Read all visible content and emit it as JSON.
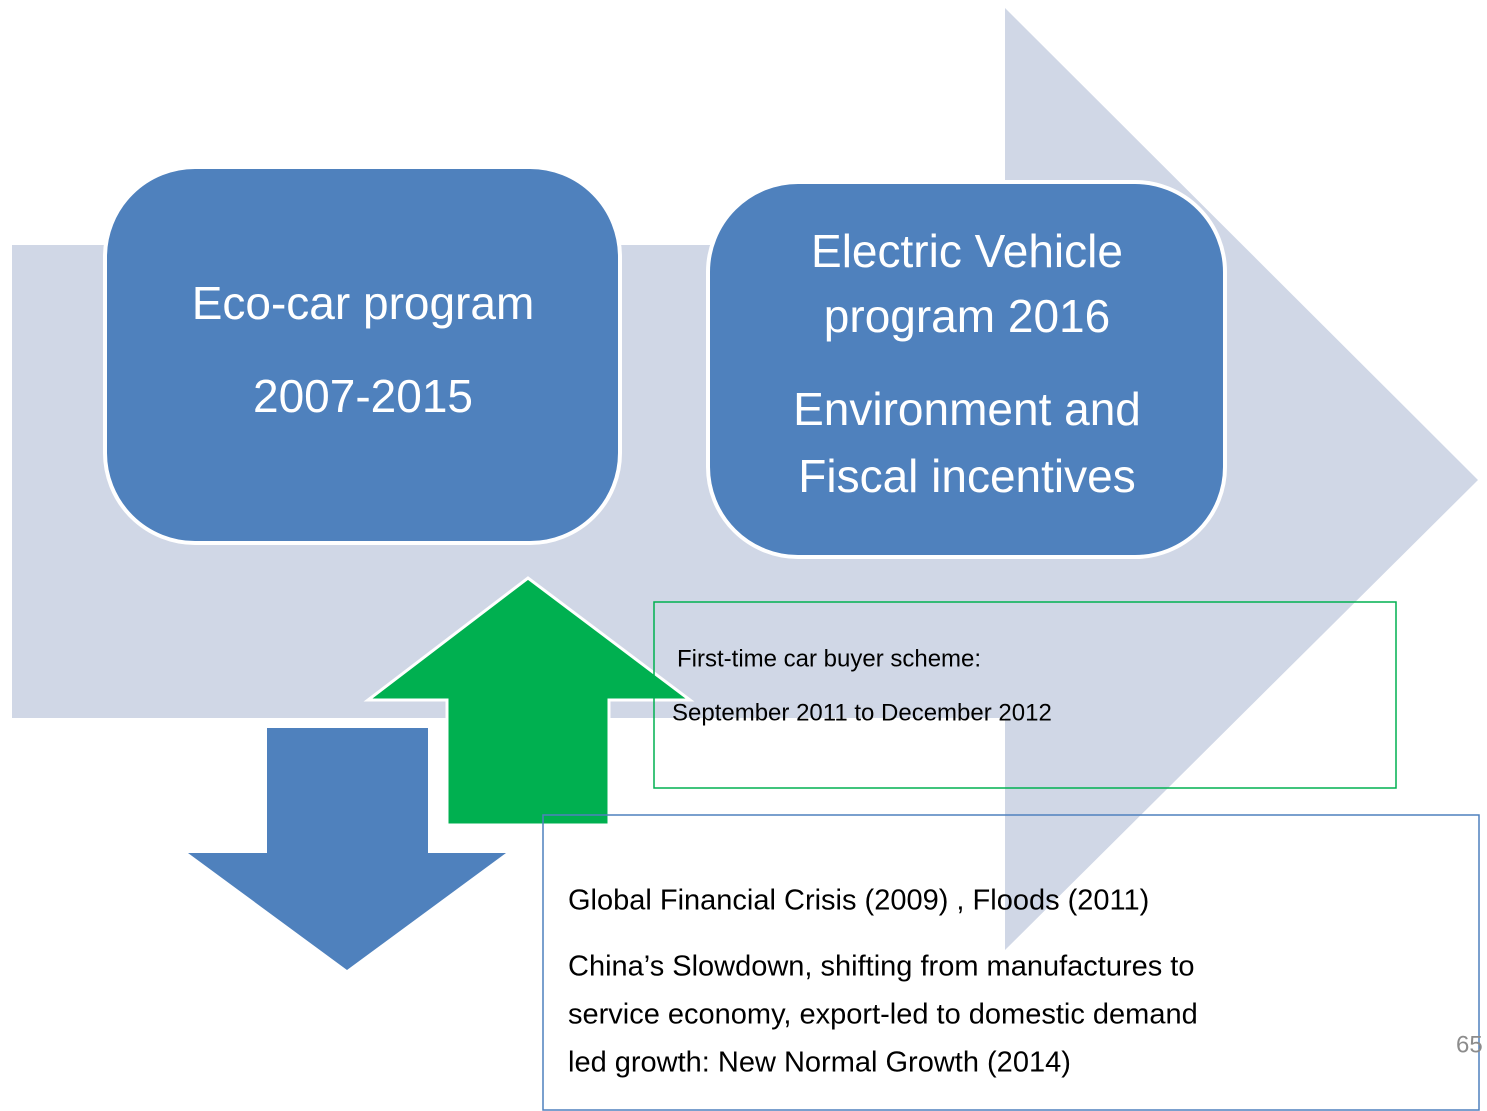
{
  "boxes": [
    {
      "lines": [
        "Eco-car program",
        "2007-2015"
      ]
    },
    {
      "lines": [
        "Electric Vehicle",
        "program 2016",
        "Environment and",
        "Fiscal incentives"
      ]
    }
  ],
  "green_note": {
    "lines": [
      "First-time car buyer scheme:",
      "September 2011 to December 2012"
    ]
  },
  "blue_note": {
    "lines": [
      "Global Financial Crisis (2009) , Floods (2011)",
      "China’s Slowdown, shifting from manufactures to",
      "service economy, export-led to domestic demand",
      "led growth: New Normal Growth (2014)"
    ]
  },
  "page_number": "65"
}
